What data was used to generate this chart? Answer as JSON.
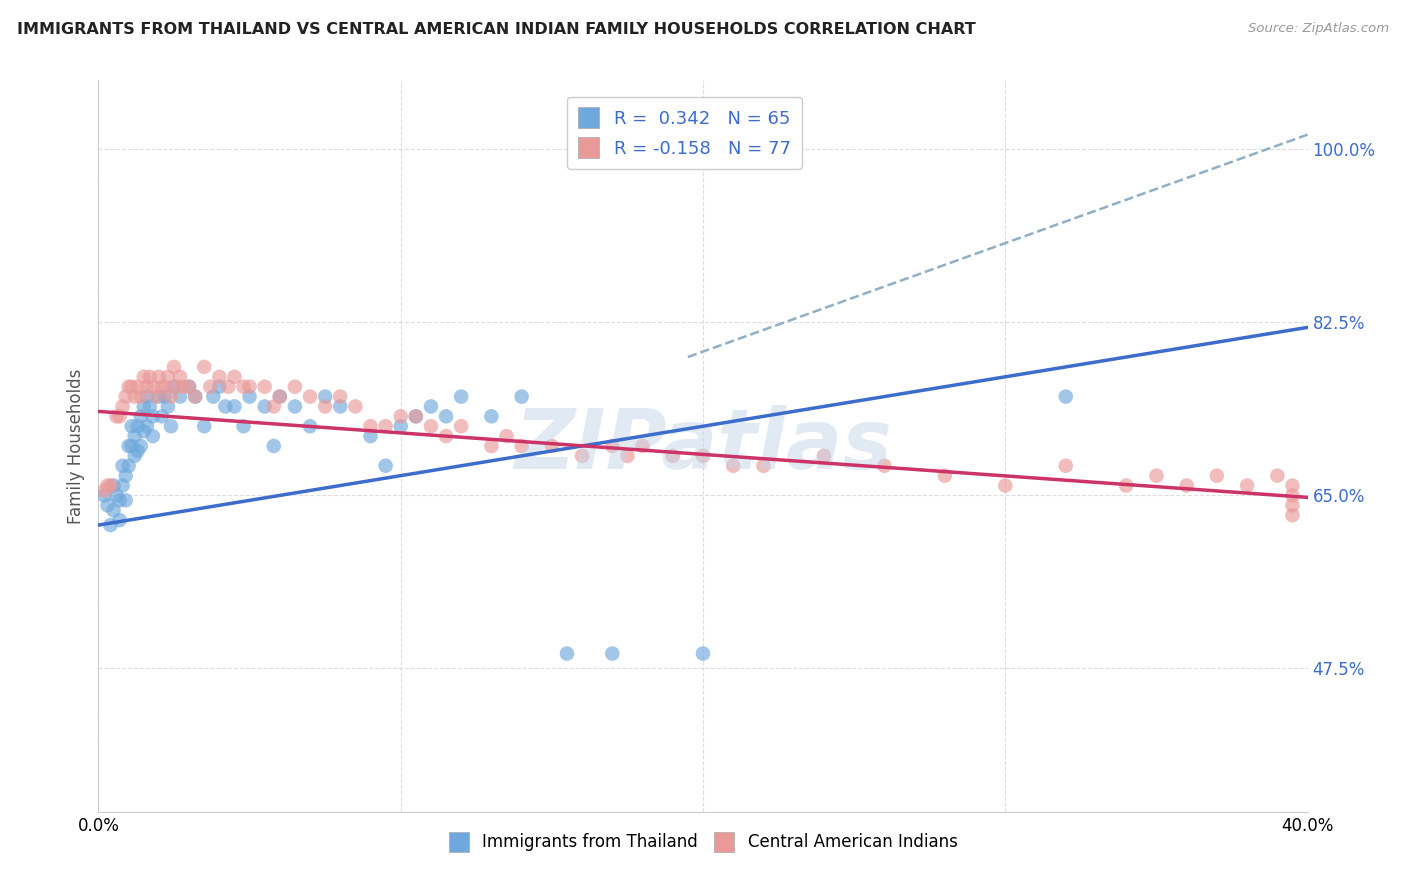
{
  "title": "IMMIGRANTS FROM THAILAND VS CENTRAL AMERICAN INDIAN FAMILY HOUSEHOLDS CORRELATION CHART",
  "source": "Source: ZipAtlas.com",
  "ylabel": "Family Households",
  "ytick_labels": [
    "47.5%",
    "65.0%",
    "82.5%",
    "100.0%"
  ],
  "ytick_values": [
    0.475,
    0.65,
    0.825,
    1.0
  ],
  "xlim": [
    0.0,
    0.4
  ],
  "ylim": [
    0.33,
    1.07
  ],
  "r_blue": 0.342,
  "n_blue": 65,
  "r_pink": -0.158,
  "n_pink": 77,
  "blue_color": "#6fa8dc",
  "pink_color": "#ea9999",
  "blue_line_color": "#3c6ccc",
  "pink_line_color": "#cc3366",
  "dashed_line_color": "#90afc5",
  "legend_label_blue": "Immigrants from Thailand",
  "legend_label_pink": "Central American Indians",
  "blue_scatter_x": [
    0.002,
    0.003,
    0.004,
    0.005,
    0.005,
    0.006,
    0.007,
    0.007,
    0.008,
    0.008,
    0.009,
    0.009,
    0.01,
    0.01,
    0.011,
    0.011,
    0.012,
    0.012,
    0.013,
    0.013,
    0.014,
    0.014,
    0.015,
    0.015,
    0.016,
    0.016,
    0.017,
    0.018,
    0.018,
    0.02,
    0.021,
    0.022,
    0.023,
    0.024,
    0.025,
    0.027,
    0.03,
    0.032,
    0.035,
    0.038,
    0.04,
    0.042,
    0.045,
    0.048,
    0.05,
    0.055,
    0.058,
    0.06,
    0.065,
    0.07,
    0.075,
    0.08,
    0.09,
    0.095,
    0.1,
    0.105,
    0.11,
    0.115,
    0.12,
    0.13,
    0.14,
    0.155,
    0.17,
    0.2,
    0.32
  ],
  "blue_scatter_y": [
    0.65,
    0.64,
    0.62,
    0.66,
    0.635,
    0.65,
    0.645,
    0.625,
    0.68,
    0.66,
    0.67,
    0.645,
    0.7,
    0.68,
    0.72,
    0.7,
    0.71,
    0.69,
    0.72,
    0.695,
    0.73,
    0.7,
    0.74,
    0.715,
    0.75,
    0.72,
    0.74,
    0.73,
    0.71,
    0.75,
    0.73,
    0.75,
    0.74,
    0.72,
    0.76,
    0.75,
    0.76,
    0.75,
    0.72,
    0.75,
    0.76,
    0.74,
    0.74,
    0.72,
    0.75,
    0.74,
    0.7,
    0.75,
    0.74,
    0.72,
    0.75,
    0.74,
    0.71,
    0.68,
    0.72,
    0.73,
    0.74,
    0.73,
    0.75,
    0.73,
    0.75,
    0.49,
    0.49,
    0.49,
    0.75
  ],
  "pink_scatter_x": [
    0.002,
    0.003,
    0.004,
    0.006,
    0.007,
    0.008,
    0.009,
    0.01,
    0.011,
    0.012,
    0.013,
    0.014,
    0.015,
    0.016,
    0.017,
    0.018,
    0.019,
    0.02,
    0.021,
    0.022,
    0.023,
    0.024,
    0.025,
    0.026,
    0.027,
    0.028,
    0.03,
    0.032,
    0.035,
    0.037,
    0.04,
    0.043,
    0.045,
    0.048,
    0.05,
    0.055,
    0.058,
    0.06,
    0.065,
    0.07,
    0.075,
    0.08,
    0.085,
    0.09,
    0.095,
    0.1,
    0.105,
    0.11,
    0.115,
    0.12,
    0.13,
    0.135,
    0.14,
    0.15,
    0.16,
    0.17,
    0.175,
    0.18,
    0.19,
    0.2,
    0.21,
    0.22,
    0.24,
    0.26,
    0.28,
    0.3,
    0.32,
    0.34,
    0.35,
    0.36,
    0.37,
    0.38,
    0.39,
    0.395,
    0.395,
    0.395,
    0.395
  ],
  "pink_scatter_y": [
    0.655,
    0.66,
    0.66,
    0.73,
    0.73,
    0.74,
    0.75,
    0.76,
    0.76,
    0.75,
    0.76,
    0.75,
    0.77,
    0.76,
    0.77,
    0.76,
    0.75,
    0.77,
    0.76,
    0.76,
    0.77,
    0.75,
    0.78,
    0.76,
    0.77,
    0.76,
    0.76,
    0.75,
    0.78,
    0.76,
    0.77,
    0.76,
    0.77,
    0.76,
    0.76,
    0.76,
    0.74,
    0.75,
    0.76,
    0.75,
    0.74,
    0.75,
    0.74,
    0.72,
    0.72,
    0.73,
    0.73,
    0.72,
    0.71,
    0.72,
    0.7,
    0.71,
    0.7,
    0.7,
    0.69,
    0.7,
    0.69,
    0.7,
    0.69,
    0.69,
    0.68,
    0.68,
    0.69,
    0.68,
    0.67,
    0.66,
    0.68,
    0.66,
    0.67,
    0.66,
    0.67,
    0.66,
    0.67,
    0.66,
    0.65,
    0.64,
    0.63
  ],
  "blue_line_x0": 0.0,
  "blue_line_x1": 0.4,
  "blue_line_y0": 0.62,
  "blue_line_y1": 0.82,
  "pink_line_x0": 0.0,
  "pink_line_x1": 0.4,
  "pink_line_y0": 0.735,
  "pink_line_y1": 0.648,
  "dashed_line_x0": 0.195,
  "dashed_line_x1": 0.4,
  "dashed_line_y0": 0.79,
  "dashed_line_y1": 1.015,
  "watermark_text": "ZIPatlas",
  "watermark_color": "#c5d5e8",
  "grid_color": "#dddddd",
  "spine_color": "#cccccc"
}
